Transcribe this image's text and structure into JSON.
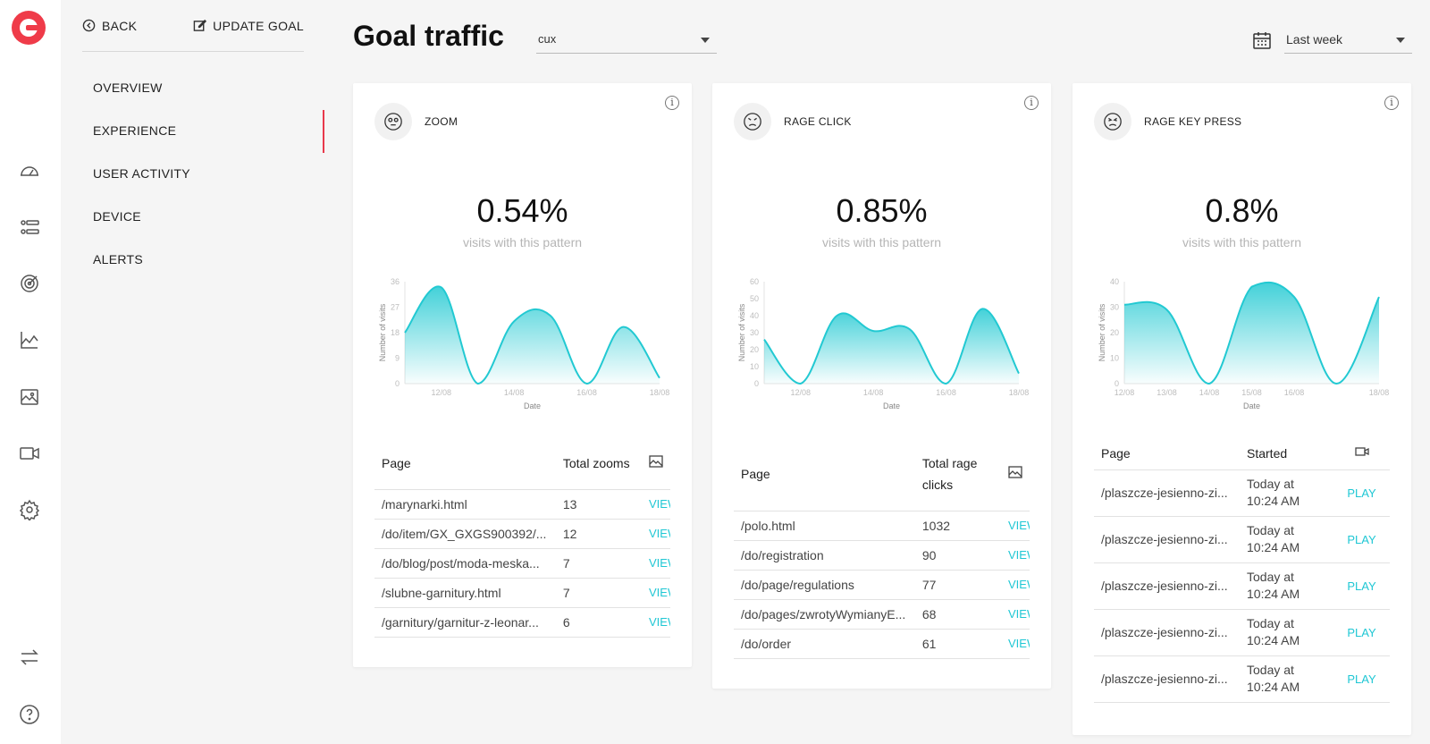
{
  "nav": {
    "back": "BACK",
    "update_goal": "UPDATE GOAL",
    "items": [
      "OVERVIEW",
      "EXPERIENCE",
      "USER ACTIVITY",
      "DEVICE",
      "ALERTS"
    ],
    "active": "EXPERIENCE"
  },
  "header": {
    "title": "Goal traffic",
    "goal_select": "cux",
    "date_select": "Last week"
  },
  "colors": {
    "accent": "#1fc7d4",
    "active": "#e8394b",
    "brand": "#ef3b49"
  },
  "cards": [
    {
      "name": "ZOOM",
      "value": "0.54%",
      "sub": "visits with this pattern",
      "table": {
        "headers": [
          "Page",
          "Total zooms"
        ],
        "rows": [
          [
            "/marynarki.html",
            "13",
            "VIEW"
          ],
          [
            "/do/item/GX_GXGS900392/...",
            "12",
            "VIEW"
          ],
          [
            "/do/blog/post/moda-meska...",
            "7",
            "VIEW"
          ],
          [
            "/slubne-garnitury.html",
            "7",
            "VIEW"
          ],
          [
            "/garnitury/garnitur-z-leonar...",
            "6",
            "VIEW"
          ]
        ]
      }
    },
    {
      "name": "RAGE CLICK",
      "value": "0.85%",
      "sub": "visits with this pattern",
      "table": {
        "headers": [
          "Page",
          "Total rage clicks"
        ],
        "rows": [
          [
            "/polo.html",
            "1032",
            "VIEW"
          ],
          [
            "/do/registration",
            "90",
            "VIEW"
          ],
          [
            "/do/page/regulations",
            "77",
            "VIEW"
          ],
          [
            "/do/pages/zwrotyWymianyE...",
            "68",
            "VIEW"
          ],
          [
            "/do/order",
            "61",
            "VIEW"
          ]
        ]
      }
    },
    {
      "name": "RAGE KEY PRESS",
      "value": "0.8%",
      "sub": "visits with this pattern",
      "table": {
        "headers": [
          "Page",
          "Started"
        ],
        "rows": [
          [
            "/plaszcze-jesienno-zi...",
            "Today at 10:24 AM",
            "PLAY"
          ],
          [
            "/plaszcze-jesienno-zi...",
            "Today at 10:24 AM",
            "PLAY"
          ],
          [
            "/plaszcze-jesienno-zi...",
            "Today at 10:24 AM",
            "PLAY"
          ],
          [
            "/plaszcze-jesienno-zi...",
            "Today at 10:24 AM",
            "PLAY"
          ],
          [
            "/plaszcze-jesienno-zi...",
            "Today at 10:24 AM",
            "PLAY"
          ]
        ]
      }
    }
  ],
  "chart_data": [
    {
      "type": "area",
      "xlabel": "Date",
      "ylabel": "Number of visits",
      "ylim": [
        0,
        36
      ],
      "y_ticks": [
        "0",
        "9",
        "18",
        "27",
        "36"
      ],
      "x_ticks": [
        "12/08",
        "14/08",
        "16/08",
        "18/08"
      ],
      "x": [
        "11/08",
        "12/08",
        "13/08",
        "14/08",
        "15/08",
        "16/08",
        "17/08",
        "18/08"
      ],
      "values": [
        18,
        34,
        0,
        22,
        24,
        0,
        20,
        2
      ]
    },
    {
      "type": "area",
      "xlabel": "Date",
      "ylabel": "Number of visits",
      "ylim": [
        0,
        60
      ],
      "y_ticks": [
        "0",
        "10",
        "20",
        "30",
        "40",
        "50",
        "60"
      ],
      "x_ticks": [
        "12/08",
        "14/08",
        "16/08",
        "18/08"
      ],
      "x": [
        "11/08",
        "12/08",
        "13/08",
        "14/08",
        "15/08",
        "16/08",
        "17/08",
        "18/08"
      ],
      "values": [
        26,
        0,
        40,
        31,
        32,
        0,
        44,
        6
      ]
    },
    {
      "type": "area",
      "xlabel": "Date",
      "ylabel": "Number of visits",
      "ylim": [
        0,
        40
      ],
      "y_ticks": [
        "0",
        "10",
        "20",
        "30",
        "40"
      ],
      "x_ticks": [
        "12/08",
        "13/08",
        "14/08",
        "15/08",
        "16/08",
        "18/08"
      ],
      "x": [
        "12/08",
        "13/08",
        "14/08",
        "15/08",
        "16/08",
        "17/08",
        "18/08"
      ],
      "values": [
        31,
        29,
        0,
        38,
        34,
        0,
        34
      ]
    }
  ]
}
